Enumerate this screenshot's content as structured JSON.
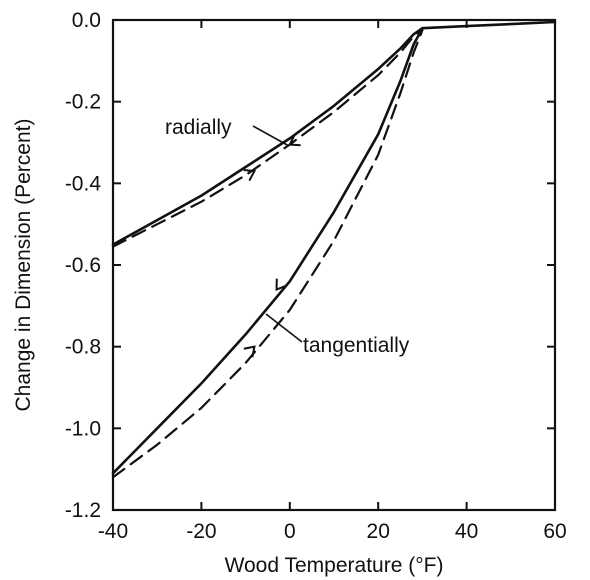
{
  "chart_data": {
    "type": "line",
    "xlabel": "Wood Temperature (°F)",
    "ylabel": "Change in Dimension (Percent)",
    "xlim": [
      -40,
      60
    ],
    "ylim": [
      -1.2,
      0.0
    ],
    "xticks": [
      -40,
      -20,
      0,
      20,
      40,
      60
    ],
    "yticks": [
      0.0,
      -0.2,
      -0.4,
      -0.6,
      -0.8,
      -1.0,
      -1.2
    ],
    "xtick_labels": [
      "-40",
      "-20",
      "0",
      "20",
      "40",
      "60"
    ],
    "ytick_labels": [
      "0.0",
      "-0.2",
      "-0.4",
      "-0.6",
      "-0.8",
      "-1.0",
      "-1.2"
    ],
    "grid": false,
    "series": [
      {
        "name": "radially",
        "style": "solid",
        "x": [
          -40,
          -30,
          -20,
          -10,
          0,
          10,
          20,
          25,
          28,
          30,
          40,
          50,
          60
        ],
        "y": [
          -0.55,
          -0.49,
          -0.43,
          -0.36,
          -0.29,
          -0.21,
          -0.12,
          -0.07,
          -0.035,
          -0.02,
          -0.015,
          -0.01,
          -0.005
        ]
      },
      {
        "name": "radially",
        "style": "dashed",
        "x": [
          -40,
          -30,
          -20,
          -10,
          0,
          10,
          20,
          25,
          28,
          30
        ],
        "y": [
          -0.555,
          -0.5,
          -0.445,
          -0.38,
          -0.305,
          -0.225,
          -0.135,
          -0.08,
          -0.04,
          -0.02
        ]
      },
      {
        "name": "tangentially",
        "style": "solid",
        "x": [
          -40,
          -30,
          -20,
          -10,
          0,
          10,
          20,
          25,
          28,
          30
        ],
        "y": [
          -1.11,
          -1.0,
          -0.89,
          -0.77,
          -0.64,
          -0.47,
          -0.28,
          -0.15,
          -0.06,
          -0.02
        ]
      },
      {
        "name": "tangentially",
        "style": "dashed",
        "x": [
          -40,
          -30,
          -20,
          -10,
          0,
          10,
          20,
          25,
          28,
          30
        ],
        "y": [
          -1.12,
          -1.04,
          -0.95,
          -0.84,
          -0.71,
          -0.54,
          -0.33,
          -0.18,
          -0.08,
          -0.025
        ]
      }
    ],
    "annotations": [
      "radially",
      "tangentially"
    ]
  }
}
